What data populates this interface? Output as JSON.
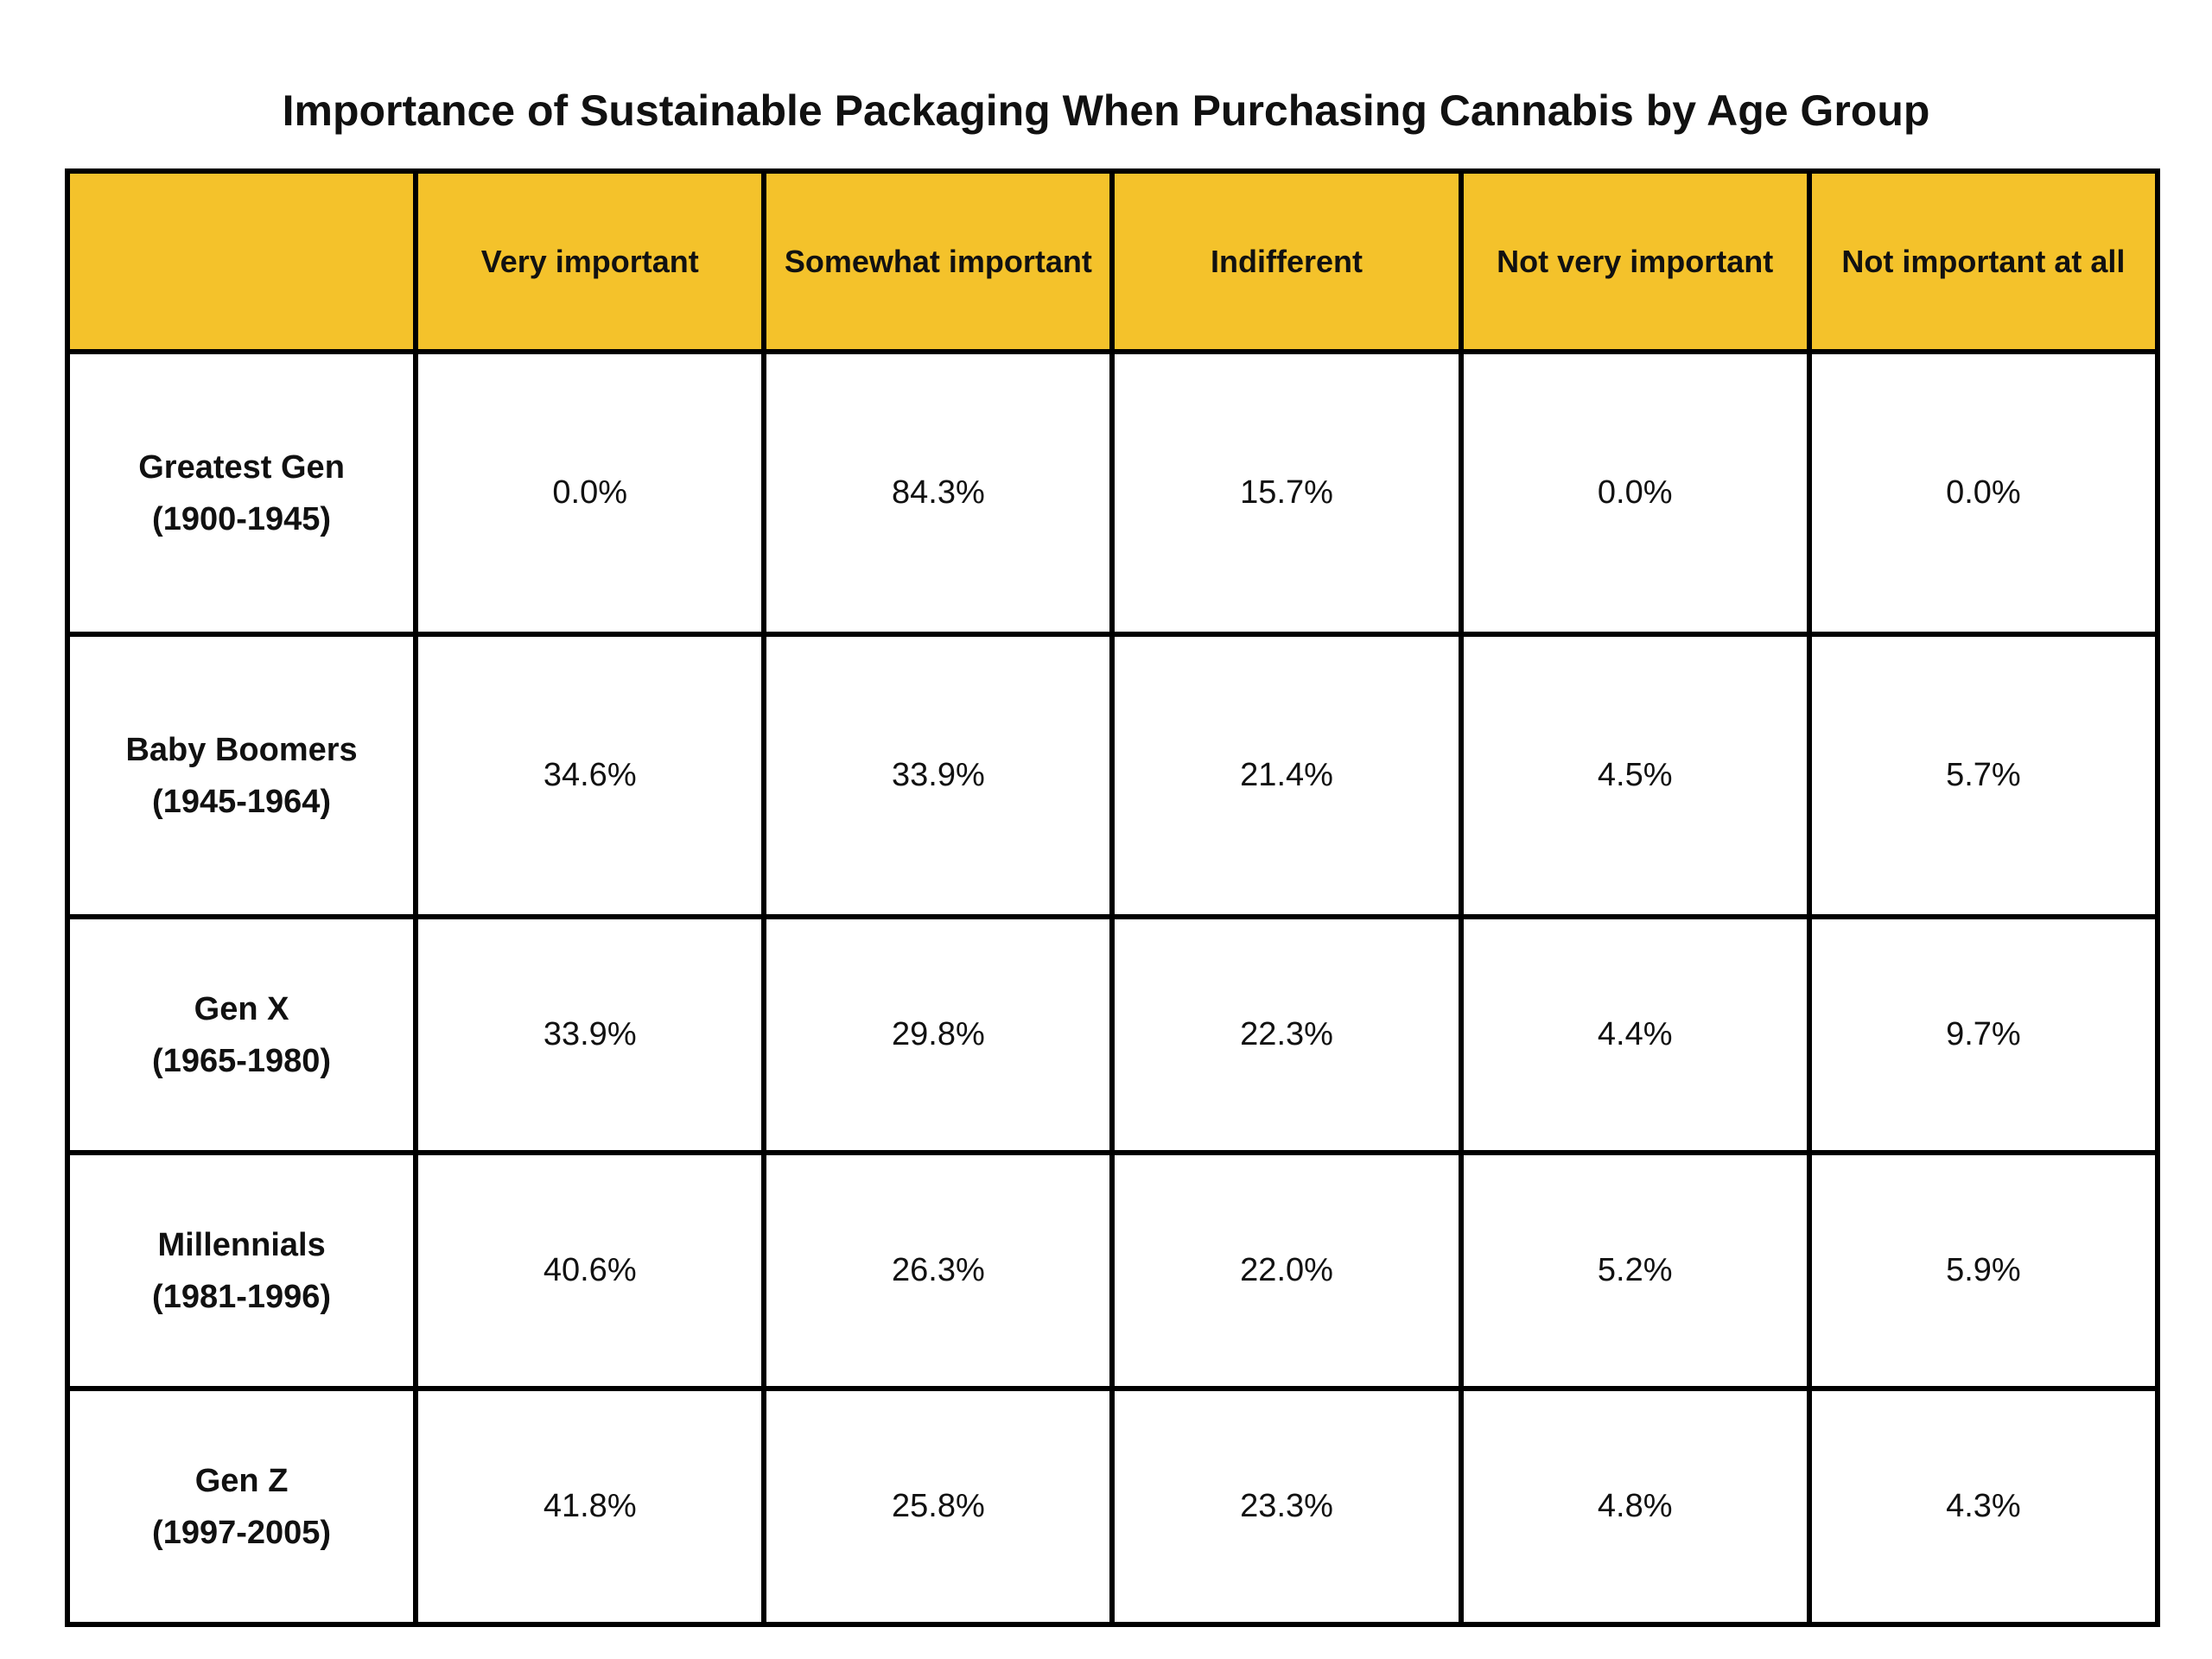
{
  "chart_data": {
    "type": "table",
    "title": "Importance of Sustainable Packaging When Purchasing Cannabis by Age Group",
    "header_color": "#f4c22b",
    "columns": [
      "",
      "Very important",
      "Somewhat important",
      "Indifferent",
      "Not very important",
      "Not important at all"
    ],
    "rows": [
      {
        "label": "Greatest Gen",
        "years": "(1900-1945)",
        "values": [
          "0.0%",
          "84.3%",
          "15.7%",
          "0.0%",
          "0.0%"
        ]
      },
      {
        "label": "Baby Boomers",
        "years": "(1945-1964)",
        "values": [
          "34.6%",
          "33.9%",
          "21.4%",
          "4.5%",
          "5.7%"
        ]
      },
      {
        "label": "Gen X",
        "years": "(1965-1980)",
        "values": [
          "33.9%",
          "29.8%",
          "22.3%",
          "4.4%",
          "9.7%"
        ]
      },
      {
        "label": "Millennials",
        "years": "(1981-1996)",
        "values": [
          "40.6%",
          "26.3%",
          "22.0%",
          "5.2%",
          "5.9%"
        ]
      },
      {
        "label": "Gen Z",
        "years": "(1997-2005)",
        "values": [
          "41.8%",
          "25.8%",
          "23.3%",
          "4.8%",
          "4.3%"
        ]
      }
    ]
  }
}
